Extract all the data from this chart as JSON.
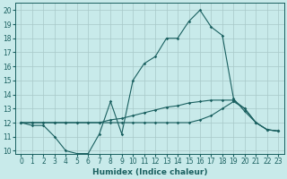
{
  "title": "",
  "xlabel": "Humidex (Indice chaleur)",
  "bg_color": "#c8eaea",
  "grid_color": "#a8c8c8",
  "line_color": "#1a6060",
  "xlim": [
    -0.5,
    23.5
  ],
  "ylim": [
    9.8,
    20.5
  ],
  "yticks": [
    10,
    11,
    12,
    13,
    14,
    15,
    16,
    17,
    18,
    19,
    20
  ],
  "xticks": [
    0,
    1,
    2,
    3,
    4,
    5,
    6,
    7,
    8,
    9,
    10,
    11,
    12,
    13,
    14,
    15,
    16,
    17,
    18,
    19,
    20,
    21,
    22,
    23
  ],
  "line1_x": [
    0,
    1,
    2,
    3,
    4,
    5,
    6,
    7,
    8,
    9,
    10,
    11,
    12,
    13,
    14,
    15,
    16,
    17,
    18,
    19,
    20,
    21,
    22,
    23
  ],
  "line1_y": [
    12.0,
    11.8,
    11.8,
    11.0,
    10.0,
    9.8,
    9.8,
    11.2,
    13.5,
    11.2,
    15.0,
    16.2,
    16.7,
    18.0,
    18.0,
    19.2,
    20.0,
    18.8,
    18.2,
    13.7,
    12.8,
    12.0,
    11.5,
    11.4
  ],
  "line2_x": [
    0,
    1,
    2,
    3,
    4,
    5,
    6,
    7,
    8,
    9,
    10,
    11,
    12,
    13,
    14,
    15,
    16,
    17,
    18,
    19,
    20,
    21,
    22,
    23
  ],
  "line2_y": [
    12.0,
    12.0,
    12.0,
    12.0,
    12.0,
    12.0,
    12.0,
    12.0,
    12.2,
    12.3,
    12.5,
    12.7,
    12.9,
    13.1,
    13.2,
    13.4,
    13.5,
    13.6,
    13.6,
    13.6,
    13.0,
    12.0,
    11.5,
    11.4
  ],
  "line3_x": [
    0,
    1,
    2,
    3,
    4,
    5,
    6,
    7,
    8,
    9,
    10,
    11,
    12,
    13,
    14,
    15,
    16,
    17,
    18,
    19,
    20,
    21,
    22,
    23
  ],
  "line3_y": [
    12.0,
    12.0,
    12.0,
    12.0,
    12.0,
    12.0,
    12.0,
    12.0,
    12.0,
    12.0,
    12.0,
    12.0,
    12.0,
    12.0,
    12.0,
    12.0,
    12.2,
    12.5,
    13.0,
    13.5,
    13.0,
    12.0,
    11.5,
    11.4
  ],
  "tick_fontsize": 5.5,
  "xlabel_fontsize": 6.5
}
